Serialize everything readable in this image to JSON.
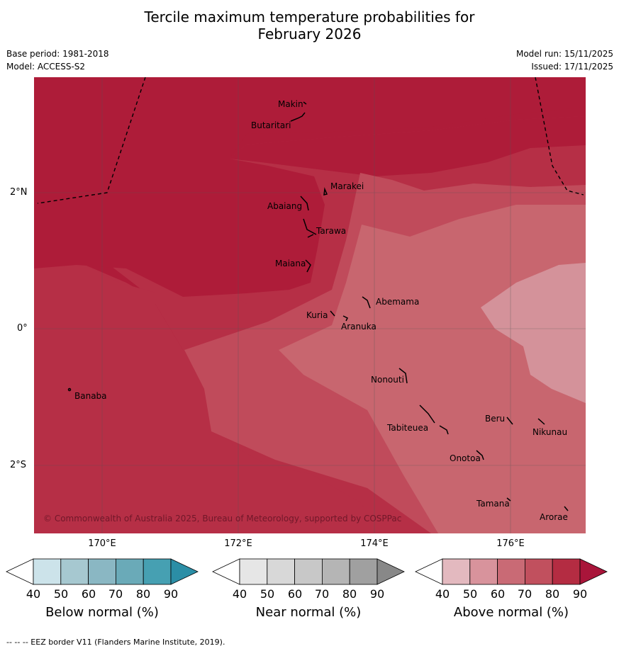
{
  "title_line1": "Tercile maximum temperature probabilities for",
  "title_line2": "February 2026",
  "meta_left": {
    "base_period": "Base period: 1981-2018",
    "model": "Model: ACCESS-S2"
  },
  "meta_right": {
    "model_run": "Model run: 15/11/2025",
    "issued": "Issued: 17/11/2025"
  },
  "copyright": "© Commonwealth of Australia 2025, Bureau of Meteorology, supported by COSPPac",
  "longitude_labels": [
    "170°E",
    "172°E",
    "174°E",
    "176°E"
  ],
  "latitude_labels": [
    "2°N",
    "0°",
    "2°S"
  ],
  "islands": [
    "Makin",
    "Butaritari",
    "Marakei",
    "Abaiang",
    "Tarawa",
    "Maiana",
    "Abemama",
    "Kuria",
    "Aranuka",
    "Nonouti",
    "Banaba",
    "Beru",
    "Nikunau",
    "Tabiteuea",
    "Onotoa",
    "Tamana",
    "Arorae"
  ],
  "colorbars": [
    {
      "title": "Below normal (%)",
      "ticks": [
        "40",
        "50",
        "60",
        "70",
        "80",
        "90"
      ],
      "colors": [
        "#ffffff",
        "#cce3ea",
        "#a6c8d0",
        "#8ab7c3",
        "#6aaab8",
        "#46a0b2",
        "#2b8ea6"
      ]
    },
    {
      "title": "Near normal (%)",
      "ticks": [
        "40",
        "50",
        "60",
        "70",
        "80",
        "90"
      ],
      "colors": [
        "#ffffff",
        "#e6e6e6",
        "#d8d8d8",
        "#c8c8c8",
        "#b5b5b5",
        "#a0a0a0",
        "#888888"
      ]
    },
    {
      "title": "Above normal (%)",
      "ticks": [
        "40",
        "50",
        "60",
        "70",
        "80",
        "90"
      ],
      "colors": [
        "#ffffff",
        "#e3b9bf",
        "#d8939c",
        "#c96a75",
        "#c1505e",
        "#b42c42",
        "#a9153a"
      ]
    }
  ],
  "footer": "--  --  -- EEZ border V11 (Flanders Marine Institute, 2019)."
}
